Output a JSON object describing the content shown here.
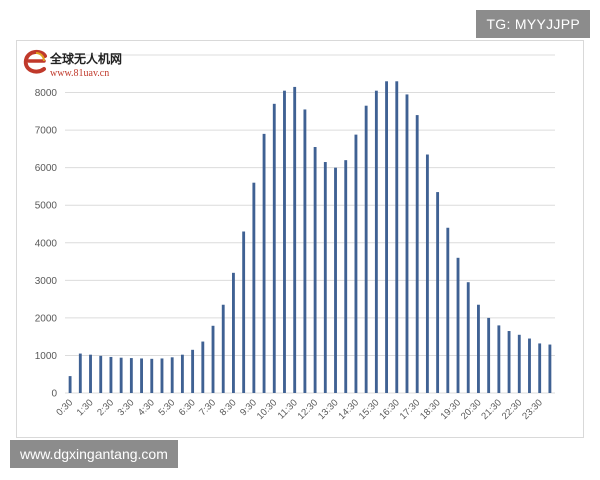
{
  "logo": {
    "title": "全球无人机网",
    "url": "www.81uav.cn"
  },
  "watermarks": {
    "top_right": "TG: MYYJJPP",
    "bottom_left": "www.dgxingantang.com"
  },
  "colors": {
    "bar": "#3f6193",
    "grid": "#dcdcdc",
    "axis_text": "#595959",
    "logo_red": "#c0392b"
  },
  "chart_data": {
    "type": "bar",
    "title": "",
    "xlabel": "",
    "ylabel": "",
    "ylim": [
      0,
      9000
    ],
    "yticks": [
      0,
      1000,
      2000,
      3000,
      4000,
      5000,
      6000,
      7000,
      8000,
      9000
    ],
    "ytick_labels": [
      "0",
      "1000",
      "2000",
      "3000",
      "4000",
      "5000",
      "6000",
      "7000",
      "8000",
      ""
    ],
    "grid": true,
    "legend": "none",
    "categories": [
      "0:30",
      "1:00",
      "1:30",
      "2:00",
      "2:30",
      "3:00",
      "3:30",
      "4:00",
      "4:30",
      "5:00",
      "5:30",
      "6:00",
      "6:30",
      "7:00",
      "7:30",
      "8:00",
      "8:30",
      "9:00",
      "9:30",
      "10:00",
      "10:30",
      "11:00",
      "11:30",
      "12:00",
      "12:30",
      "13:00",
      "13:30",
      "14:00",
      "14:30",
      "15:00",
      "15:30",
      "16:00",
      "16:30",
      "17:00",
      "17:30",
      "18:00",
      "18:30",
      "19:00",
      "19:30",
      "20:00",
      "20:30",
      "21:00",
      "21:30",
      "22:00",
      "22:30",
      "23:00",
      "23:30",
      "24:00"
    ],
    "tick_labels": [
      "0:30",
      "",
      "1:30",
      "",
      "2:30",
      "",
      "3:30",
      "",
      "4:30",
      "",
      "5:30",
      "",
      "6:30",
      "",
      "7:30",
      "",
      "8:30",
      "",
      "9:30",
      "",
      "10:30",
      "",
      "11:30",
      "",
      "12:30",
      "",
      "13:30",
      "",
      "14:30",
      "",
      "15:30",
      "",
      "16:30",
      "",
      "17:30",
      "",
      "18:30",
      "",
      "19:30",
      "",
      "20:30",
      "",
      "21:30",
      "",
      "22:30",
      "",
      "23:30",
      ""
    ],
    "values": [
      450,
      1050,
      1020,
      990,
      960,
      940,
      930,
      920,
      910,
      920,
      950,
      1020,
      1150,
      1370,
      1790,
      2350,
      3200,
      4300,
      5600,
      6900,
      7700,
      8050,
      8150,
      7550,
      6550,
      6150,
      6000,
      6200,
      6880,
      7650,
      8050,
      8300,
      8300,
      7950,
      7400,
      6350,
      5350,
      4400,
      3600,
      2950,
      2350,
      2000,
      1800,
      1650,
      1550,
      1450,
      1320,
      1290
    ]
  }
}
